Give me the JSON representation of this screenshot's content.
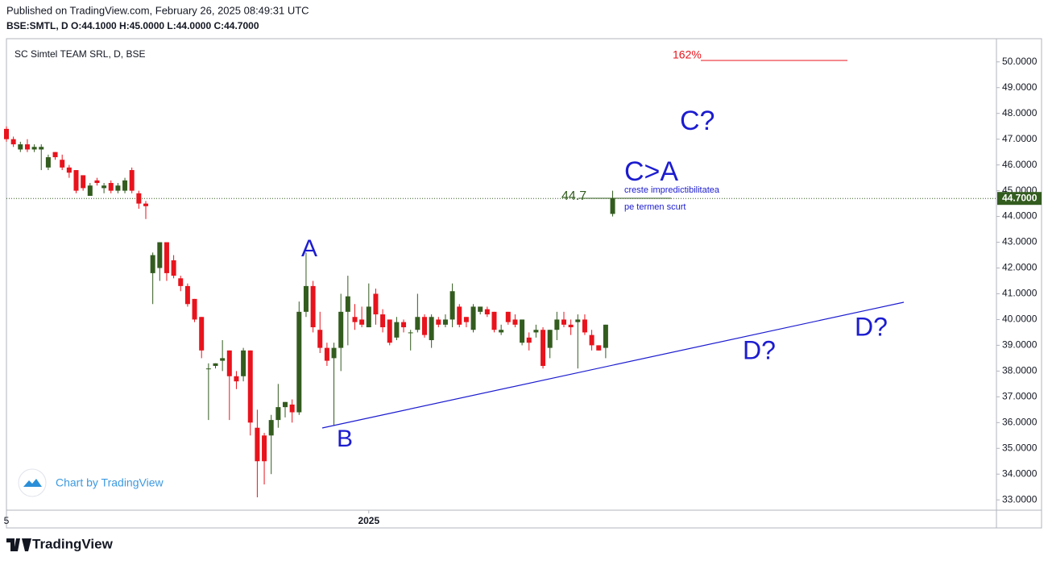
{
  "published": "Published on TradingView.com, February 26, 2025 08:49:31 UTC",
  "ohlc_header": "BSE:SMTL, D  O:44.1000 H:45.0000 L:44.0000 C:44.7000",
  "footer_brand": "TradingView",
  "watermark": "Chart by TradingView",
  "chart_data": {
    "type": "candlestick",
    "title": "SC Simtel TEAM SRL, D, BSE",
    "up_color": "#335c1f",
    "down_color": "#e8131c",
    "categories": [
      "5",
      null,
      null,
      null,
      null,
      null,
      null,
      null,
      null,
      null,
      null,
      null,
      null,
      null,
      null,
      null,
      null,
      null,
      null,
      null,
      null,
      null,
      null,
      null,
      null,
      null,
      null,
      null,
      null,
      null,
      null,
      null,
      null,
      null,
      null,
      null,
      null,
      null,
      null,
      null,
      null,
      null,
      null,
      null,
      null,
      null,
      null,
      null,
      null,
      null,
      null,
      null,
      "2025",
      null,
      null,
      null,
      null,
      null,
      null,
      null,
      null,
      null,
      null,
      null,
      null,
      null,
      null,
      null,
      null,
      null,
      null,
      null,
      null,
      null,
      null,
      null,
      null,
      null,
      null,
      null,
      null,
      null,
      null,
      null,
      null,
      null,
      null,
      null
    ],
    "open": [
      47.4,
      47.0,
      46.6,
      46.8,
      46.6,
      46.6,
      45.9,
      46.5,
      46.2,
      45.9,
      45.8,
      45.6,
      44.8,
      45.4,
      45.1,
      45.3,
      45.0,
      45.0,
      45.8,
      44.9,
      44.5,
      41.8,
      42.0,
      43.0,
      42.3,
      41.6,
      41.3,
      40.8,
      40.1,
      38.1,
      38.2,
      38.4,
      38.8,
      37.8,
      37.8,
      38.8,
      35.8,
      35.5,
      35.5,
      36.1,
      36.6,
      36.7,
      36.4,
      40.3,
      41.3,
      39.6,
      38.9,
      38.5,
      38.9,
      40.3,
      40.1,
      40.0,
      39.7,
      41.0,
      40.2,
      40.0,
      39.3,
      39.9,
      39.5,
      39.6,
      40.1,
      39.2,
      40.0,
      39.8,
      40.0,
      40.5,
      40.1,
      39.6,
      40.3,
      40.4,
      40.3,
      39.5,
      40.3,
      40.0,
      39.1,
      39.3,
      39.5,
      39.6,
      38.9,
      39.6,
      40.0,
      39.8,
      39.9,
      40.0,
      39.4,
      39.0,
      38.9,
      44.1
    ],
    "high": [
      47.5,
      47.1,
      46.9,
      47.0,
      46.8,
      46.8,
      46.4,
      46.5,
      46.4,
      46.0,
      45.8,
      45.6,
      45.3,
      45.5,
      45.3,
      45.4,
      45.3,
      45.5,
      45.9,
      45.0,
      44.6,
      42.6,
      43.0,
      43.0,
      42.5,
      41.7,
      41.4,
      40.8,
      40.1,
      38.3,
      38.3,
      39.2,
      38.8,
      38.0,
      38.9,
      38.8,
      36.5,
      35.6,
      36.3,
      37.5,
      36.8,
      36.9,
      40.7,
      42.6,
      41.5,
      40.3,
      39.1,
      39.1,
      41.0,
      41.7,
      40.6,
      40.5,
      41.4,
      41.2,
      40.4,
      40.0,
      40.1,
      40.0,
      39.6,
      41.0,
      40.2,
      40.2,
      40.1,
      40.2,
      41.4,
      40.6,
      40.1,
      40.6,
      40.5,
      40.5,
      40.3,
      39.8,
      40.3,
      40.2,
      40.0,
      39.5,
      39.8,
      39.7,
      39.6,
      40.3,
      40.3,
      40.0,
      40.2,
      40.2,
      39.6,
      39.0,
      39.8,
      45.0
    ],
    "low": [
      46.9,
      46.7,
      46.5,
      46.5,
      46.5,
      45.8,
      45.8,
      46.2,
      45.8,
      45.5,
      44.9,
      45.0,
      44.8,
      45.2,
      44.9,
      44.9,
      44.9,
      44.9,
      44.9,
      44.3,
      43.9,
      40.6,
      41.5,
      41.5,
      41.6,
      41.1,
      40.5,
      39.9,
      38.5,
      36.1,
      38.1,
      38.0,
      36.1,
      37.3,
      37.6,
      35.5,
      33.1,
      33.6,
      34.0,
      35.8,
      36.2,
      36.0,
      36.3,
      40.1,
      39.5,
      38.7,
      38.2,
      35.9,
      38.0,
      39.0,
      39.6,
      39.7,
      39.8,
      39.8,
      39.5,
      39.0,
      39.2,
      39.5,
      38.8,
      39.5,
      39.3,
      38.9,
      39.7,
      39.7,
      39.7,
      39.7,
      39.7,
      39.5,
      40.2,
      40.1,
      39.5,
      39.4,
      39.8,
      39.7,
      39.0,
      38.8,
      39.3,
      38.1,
      38.5,
      39.2,
      39.7,
      39.4,
      38.1,
      39.4,
      38.8,
      38.8,
      38.5,
      44.0
    ],
    "close": [
      47.0,
      46.8,
      46.8,
      46.6,
      46.7,
      46.7,
      46.3,
      46.3,
      45.9,
      45.7,
      45.0,
      45.1,
      45.2,
      45.3,
      45.2,
      45.0,
      45.2,
      45.4,
      45.0,
      44.5,
      44.4,
      42.5,
      43.0,
      41.8,
      41.7,
      41.3,
      40.6,
      40.0,
      38.8,
      38.1,
      38.3,
      38.5,
      37.8,
      37.6,
      38.8,
      36.0,
      34.5,
      34.5,
      36.1,
      36.6,
      36.8,
      36.4,
      40.3,
      41.3,
      39.7,
      38.9,
      38.4,
      38.9,
      40.3,
      40.9,
      39.9,
      39.8,
      40.5,
      40.2,
      39.7,
      39.1,
      39.9,
      39.7,
      39.5,
      40.1,
      39.4,
      40.1,
      39.8,
      40.0,
      41.1,
      39.8,
      39.9,
      40.5,
      40.5,
      40.2,
      39.6,
      39.6,
      39.9,
      39.8,
      40.0,
      39.1,
      39.6,
      38.2,
      39.6,
      40.0,
      39.8,
      39.7,
      40.0,
      39.5,
      39.0,
      38.8,
      39.8,
      44.7
    ],
    "ylim": [
      32.6,
      50.9
    ],
    "yticks": [
      {
        "value": 33,
        "label": "33.0000"
      },
      {
        "value": 34,
        "label": "34.0000"
      },
      {
        "value": 35,
        "label": "35.0000"
      },
      {
        "value": 36,
        "label": "36.0000"
      },
      {
        "value": 37,
        "label": "37.0000"
      },
      {
        "value": 38,
        "label": "38.0000"
      },
      {
        "value": 39,
        "label": "39.0000"
      },
      {
        "value": 40,
        "label": "40.0000"
      },
      {
        "value": 41,
        "label": "41.0000"
      },
      {
        "value": 42,
        "label": "42.0000"
      },
      {
        "value": 43,
        "label": "43.0000"
      },
      {
        "value": 44,
        "label": "44.0000"
      },
      {
        "value": 45,
        "label": "45.0000"
      },
      {
        "value": 46,
        "label": "46.0000"
      },
      {
        "value": 47,
        "label": "47.0000"
      },
      {
        "value": 48,
        "label": "48.0000"
      },
      {
        "value": 49,
        "label": "49.0000"
      },
      {
        "value": 50,
        "label": "50.0000"
      }
    ],
    "last_price": {
      "value": 44.7,
      "label": "44.7000"
    },
    "annotations": {
      "fib": "162%",
      "c_question": "C?",
      "c_gt_a": "C>A",
      "note_1": "creste impredictibilitatea",
      "note_2": "pe termen scurt",
      "price_mark": "44.7",
      "a": "A",
      "b": "B",
      "d1": "D?",
      "d2": "D?"
    }
  }
}
